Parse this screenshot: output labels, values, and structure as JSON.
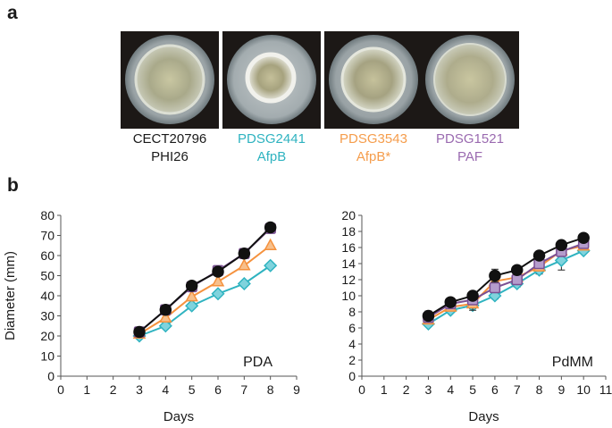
{
  "panel_a": {
    "label": "a",
    "strains": [
      {
        "line1": "CECT20796",
        "line2": "PHI26",
        "color": "#1a1a1a"
      },
      {
        "line1": "PDSG2441",
        "line2": "AfpB",
        "color": "#2fb3c0"
      },
      {
        "line1": "PDSG3543",
        "line2": "AfpB*",
        "color": "#f59d4c"
      },
      {
        "line1": "PDSG1521",
        "line2": "PAF",
        "color": "#9a6ab0"
      }
    ]
  },
  "panel_b": {
    "label": "b"
  },
  "chart_data": [
    {
      "type": "line",
      "medium_label": "PDA",
      "xlabel": "Days",
      "ylabel": "Diameter (mm)",
      "xlim": [
        0,
        9
      ],
      "ylim": [
        0,
        80
      ],
      "xticks": [
        0,
        1,
        2,
        3,
        4,
        5,
        6,
        7,
        8,
        9
      ],
      "yticks": [
        0,
        10,
        20,
        30,
        40,
        50,
        60,
        70,
        80
      ],
      "series": [
        {
          "name": "PHI26",
          "marker": "circle",
          "color": "#111111",
          "fill": "#111111",
          "x": [
            3,
            4,
            5,
            6,
            7,
            8
          ],
          "y": [
            22,
            33,
            45,
            52,
            61,
            74
          ]
        },
        {
          "name": "PAF",
          "marker": "square",
          "color": "#7a4f92",
          "fill": "#b59ccc",
          "x": [
            3,
            4,
            5,
            6,
            7,
            8
          ],
          "y": [
            22,
            33,
            44.5,
            52.5,
            61,
            73.5
          ]
        },
        {
          "name": "AfpB*",
          "marker": "triangle",
          "color": "#f5923e",
          "fill": "#f7c08c",
          "x": [
            3,
            4,
            5,
            6,
            7,
            8
          ],
          "y": [
            21,
            29,
            39.5,
            47,
            55,
            65
          ]
        },
        {
          "name": "AfpB",
          "marker": "diamond",
          "color": "#2fb3c0",
          "fill": "#7fd3dd",
          "x": [
            3,
            4,
            5,
            6,
            7,
            8
          ],
          "y": [
            20,
            25,
            35,
            41,
            46,
            55
          ]
        }
      ]
    },
    {
      "type": "line",
      "medium_label": "PdMM",
      "xlabel": "Days",
      "ylabel": "",
      "xlim": [
        0,
        11
      ],
      "ylim": [
        0,
        20
      ],
      "xticks": [
        0,
        1,
        2,
        3,
        4,
        5,
        6,
        7,
        8,
        9,
        10,
        11
      ],
      "yticks": [
        0,
        2,
        4,
        6,
        8,
        10,
        12,
        14,
        16,
        18,
        20
      ],
      "series": [
        {
          "name": "PHI26",
          "marker": "circle",
          "color": "#111111",
          "fill": "#111111",
          "x": [
            3,
            4,
            5,
            6,
            7,
            8,
            9,
            10
          ],
          "y": [
            7.5,
            9.2,
            10,
            12.5,
            13.2,
            15,
            16.3,
            17.2
          ],
          "err": [
            0.6,
            0.3,
            0.4,
            0.8,
            0.4,
            0.4,
            0.4,
            0.3
          ]
        },
        {
          "name": "PAF",
          "marker": "square",
          "color": "#7a4f92",
          "fill": "#b59ccc",
          "x": [
            3,
            4,
            5,
            6,
            7,
            8,
            9,
            10
          ],
          "y": [
            7.3,
            9,
            9.5,
            11,
            12,
            14,
            15.5,
            16.5
          ],
          "err": [
            0.4,
            0.3,
            0.4,
            0.5,
            0.4,
            0.5,
            0.4,
            0.3
          ]
        },
        {
          "name": "AfpB*",
          "marker": "triangle",
          "color": "#f5923e",
          "fill": "#f7c08c",
          "x": [
            3,
            4,
            5,
            6,
            7,
            8,
            9,
            10
          ],
          "y": [
            7,
            8.6,
            9,
            11.8,
            12.3,
            13.6,
            15.6,
            16.2
          ],
          "err": [
            0.4,
            0.3,
            0.8,
            0.6,
            0.5,
            0.5,
            0.4,
            0.3
          ]
        },
        {
          "name": "AfpB",
          "marker": "diamond",
          "color": "#2fb3c0",
          "fill": "#7fd3dd",
          "x": [
            3,
            4,
            5,
            6,
            7,
            8,
            9,
            10
          ],
          "y": [
            6.5,
            8.2,
            8.8,
            10,
            11.5,
            13.2,
            14.4,
            15.6
          ],
          "err": [
            0.3,
            0.3,
            0.4,
            0.4,
            0.4,
            0.5,
            1.2,
            0.3
          ]
        }
      ]
    }
  ]
}
